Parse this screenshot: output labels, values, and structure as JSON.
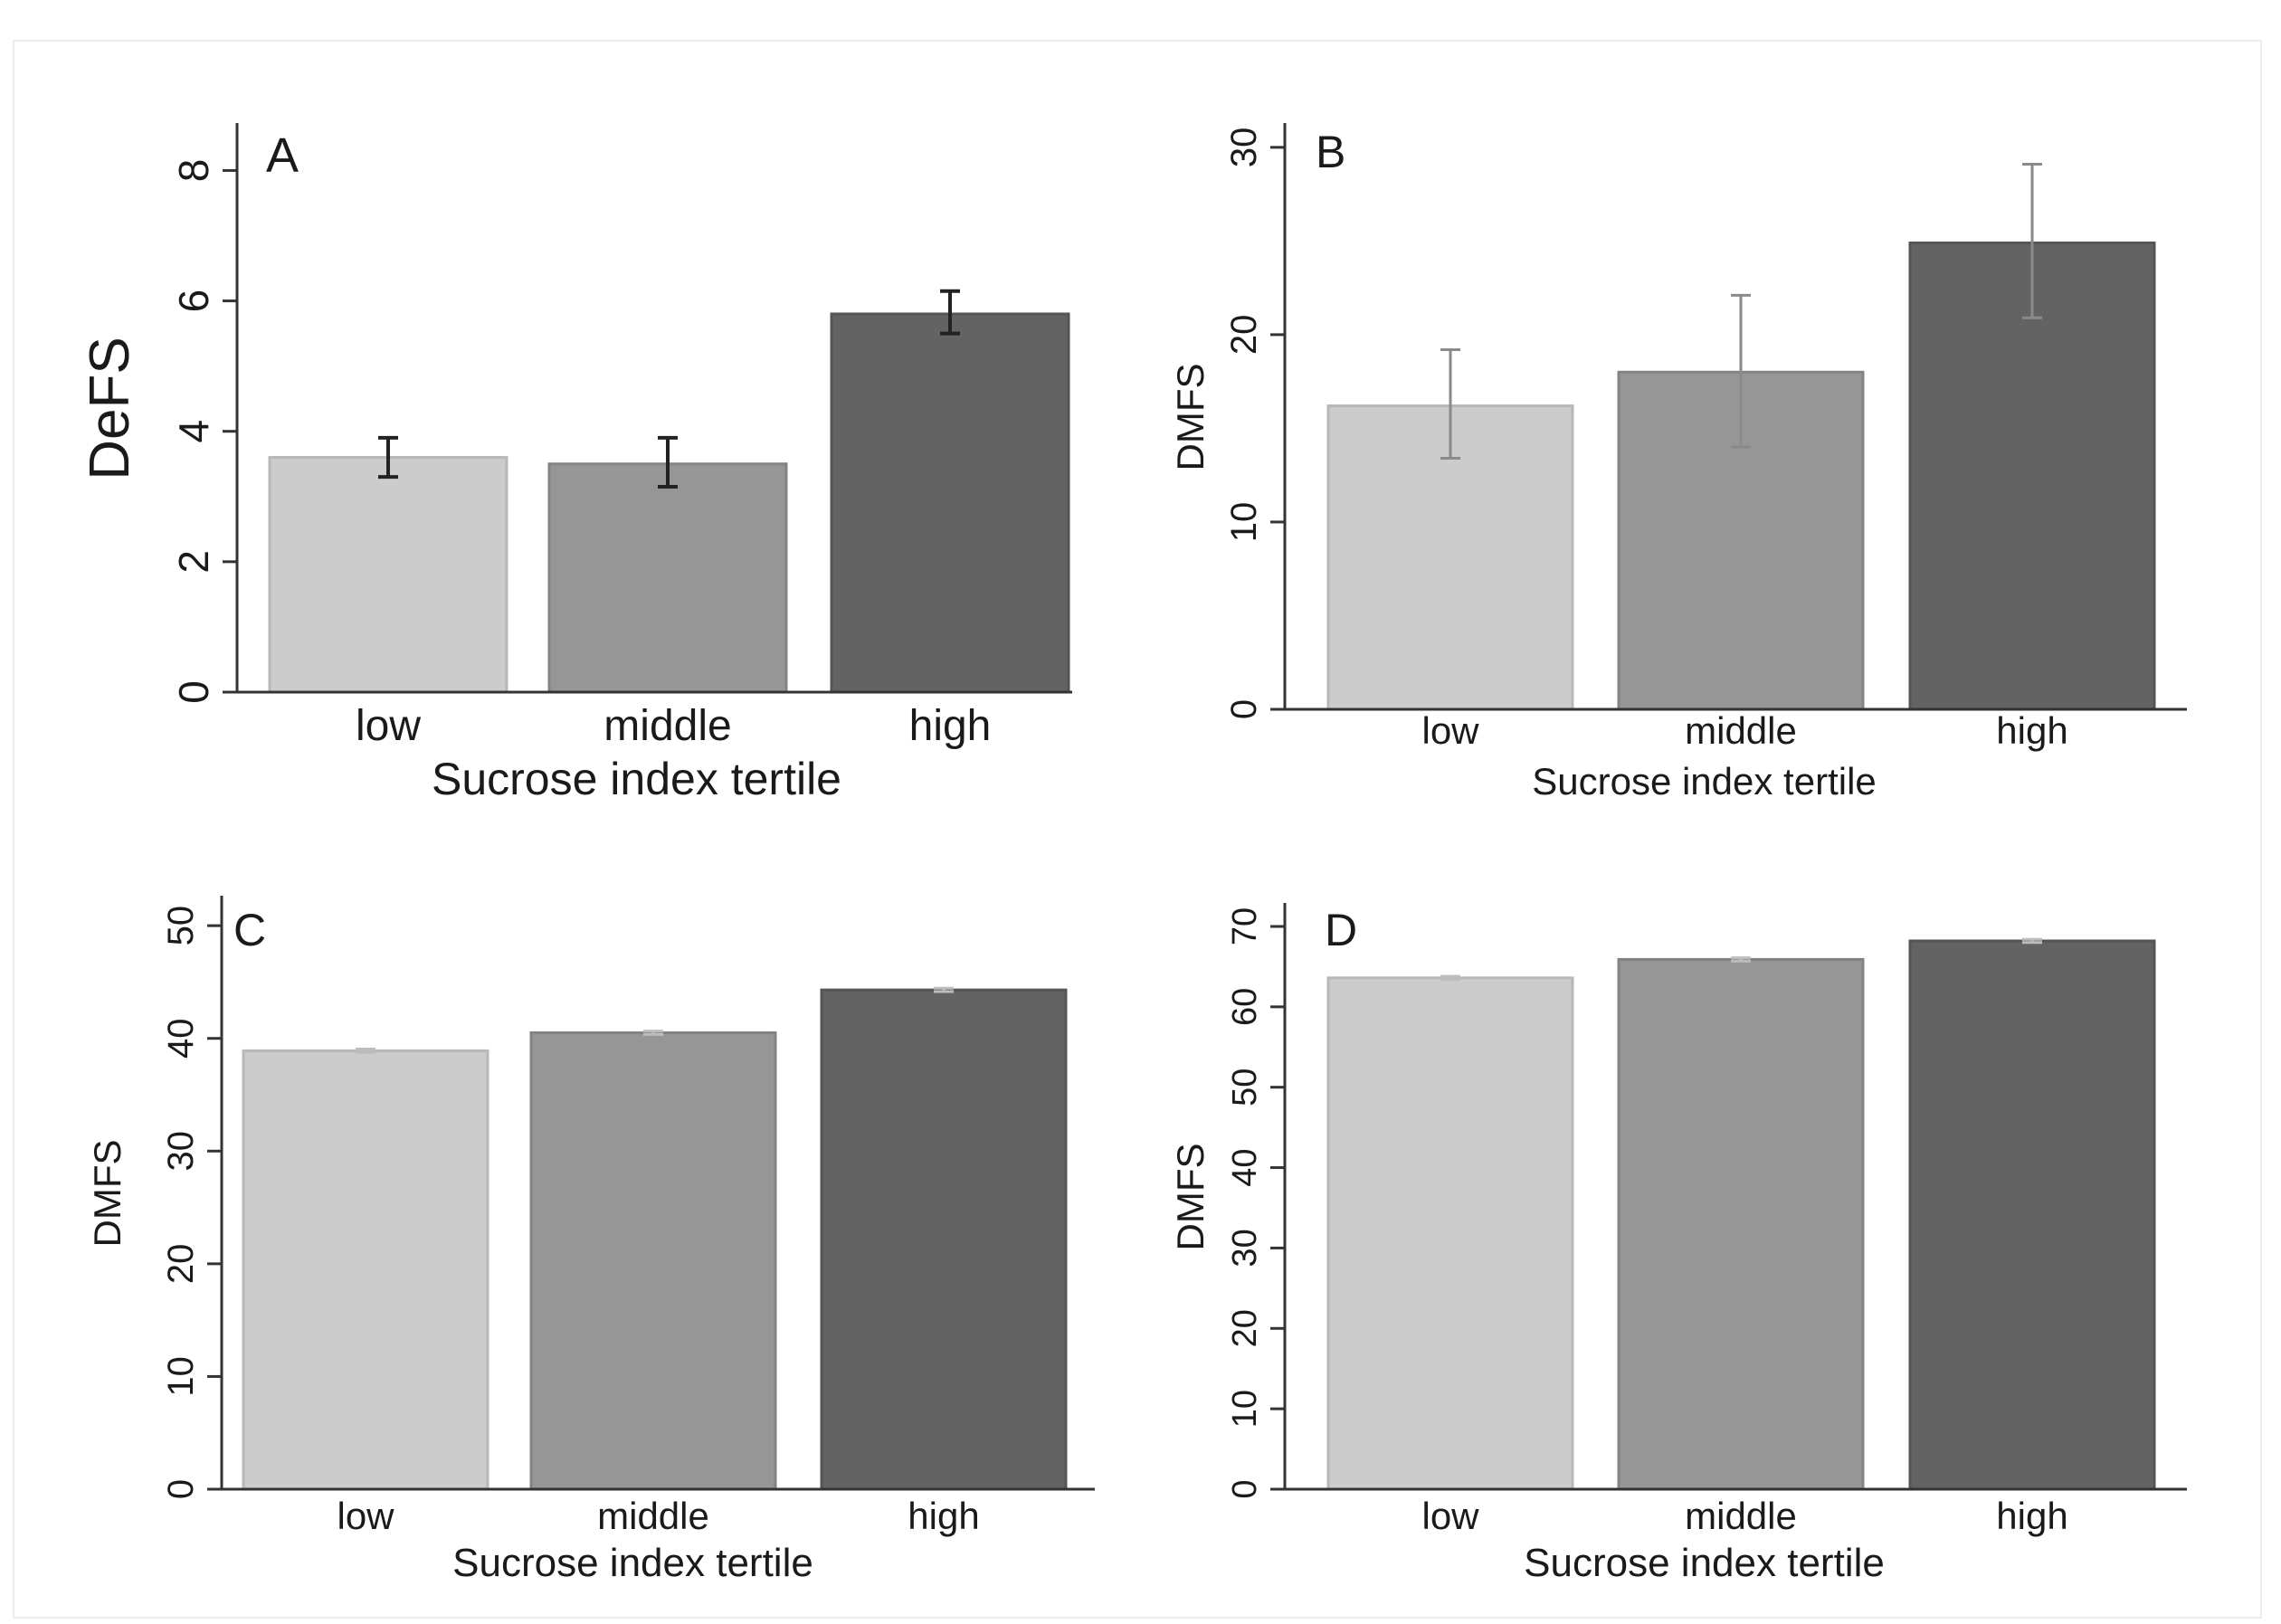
{
  "chart_data": [
    {
      "panel": "A",
      "type": "bar",
      "categories": [
        "low",
        "middle",
        "high"
      ],
      "values": [
        3.6,
        3.5,
        5.8
      ],
      "error_low": [
        3.3,
        3.15,
        5.5
      ],
      "error_high": [
        3.9,
        3.9,
        6.15
      ],
      "ylabel": "DeFS",
      "xlabel": "Sucrose index tertile",
      "ylim": [
        0,
        8.7
      ],
      "yticks": [
        0,
        2,
        4,
        6,
        8
      ]
    },
    {
      "panel": "B",
      "type": "bar",
      "categories": [
        "low",
        "middle",
        "high"
      ],
      "values": [
        16.2,
        18.0,
        24.9
      ],
      "error_low": [
        13.4,
        14.0,
        20.9
      ],
      "error_high": [
        19.2,
        22.1,
        29.1
      ],
      "ylabel": "DMFS",
      "xlabel": "Sucrose index tertile",
      "ylim": [
        0,
        31.2
      ],
      "yticks": [
        0,
        10,
        20,
        30
      ]
    },
    {
      "panel": "C",
      "type": "bar",
      "categories": [
        "low",
        "middle",
        "high"
      ],
      "values": [
        38.9,
        40.5,
        44.3
      ],
      "error_low": [
        38.75,
        40.35,
        44.15
      ],
      "error_high": [
        39.05,
        40.65,
        44.45
      ],
      "ylabel": "DMFS",
      "xlabel": "Sucrose index tertile",
      "ylim": [
        0,
        52.5
      ],
      "yticks": [
        0,
        10,
        20,
        30,
        40,
        50
      ]
    },
    {
      "panel": "D",
      "type": "bar",
      "categories": [
        "low",
        "middle",
        "high"
      ],
      "values": [
        63.6,
        65.9,
        68.2
      ],
      "error_low": [
        63.4,
        65.7,
        68.0
      ],
      "error_high": [
        63.8,
        66.1,
        68.4
      ],
      "ylabel": "DMFS",
      "xlabel": "Sucrose index tertile",
      "ylim": [
        0,
        72.7
      ],
      "yticks": [
        0,
        10,
        20,
        30,
        40,
        50,
        60,
        70
      ]
    }
  ],
  "colors": {
    "bar_fills": [
      "#cccccc",
      "#969696",
      "#636363"
    ],
    "bar_edges": [
      "#b8b8b8",
      "#838383",
      "#555555"
    ],
    "axis": "#333333",
    "error_bars": [
      "#222222",
      "#8a8a8a",
      "#bdbdbd",
      "#bdbdbd"
    ]
  }
}
